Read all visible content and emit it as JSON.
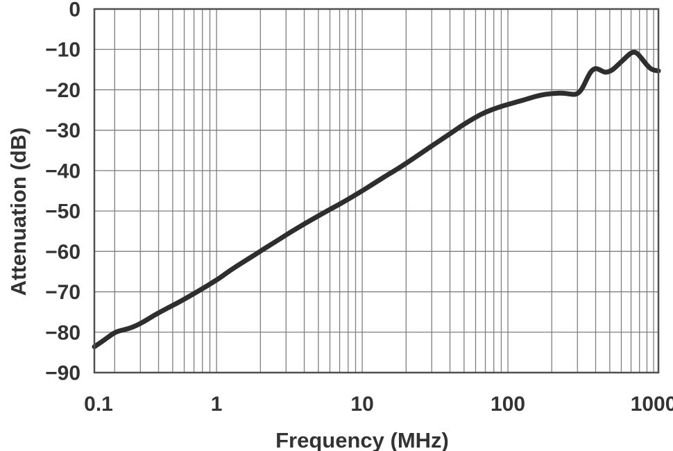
{
  "figure": {
    "xlabel": "Frequency (MHz)",
    "ylabel": "Attenuation (dB)"
  },
  "chart_data": {
    "type": "line",
    "title": "",
    "xlabel": "Frequency (MHz)",
    "ylabel": "Attenuation (dB)",
    "x_scale": "log",
    "x_unit": "MHz",
    "y_unit": "dB",
    "x_range": [
      0.145,
      1079
    ],
    "y_range": [
      -90,
      0
    ],
    "x_tick_labels": [
      "0.1",
      "1",
      "10",
      "100",
      "1000"
    ],
    "x_tick_values": [
      0.1,
      1,
      10,
      100,
      1000
    ],
    "y_tick_labels": [
      "0",
      "−10",
      "−20",
      "−30",
      "−40",
      "−50",
      "−60",
      "−70",
      "−80",
      "−90"
    ],
    "y_tick_values": [
      0,
      -10,
      -20,
      -30,
      -40,
      -50,
      -60,
      -70,
      -80,
      -90
    ],
    "grid": {
      "show": true,
      "minor_log_x": true,
      "major_every_db": 10
    },
    "legend": "none",
    "colors": {
      "curve": "#2e2e2e",
      "text": "#333333",
      "grid": "#7e7e7e",
      "border": "#4f4f4f",
      "background": "#ffffff"
    },
    "series": [
      {
        "name": "attenuation",
        "points_f_mhz_db": [
          [
            0.145,
            -83.6
          ],
          [
            0.155,
            -82.9
          ],
          [
            0.17,
            -81.9
          ],
          [
            0.19,
            -80.6
          ],
          [
            0.205,
            -79.9
          ],
          [
            0.225,
            -79.5
          ],
          [
            0.25,
            -79.1
          ],
          [
            0.28,
            -78.4
          ],
          [
            0.32,
            -77.3
          ],
          [
            0.37,
            -75.9
          ],
          [
            0.42,
            -74.8
          ],
          [
            0.48,
            -73.7
          ],
          [
            0.55,
            -72.6
          ],
          [
            0.63,
            -71.4
          ],
          [
            0.72,
            -70.2
          ],
          [
            0.82,
            -69.0
          ],
          [
            0.92,
            -67.9
          ],
          [
            1.05,
            -66.6
          ],
          [
            1.25,
            -64.6
          ],
          [
            1.5,
            -62.8
          ],
          [
            1.8,
            -61.0
          ],
          [
            2.2,
            -59.0
          ],
          [
            2.7,
            -57.0
          ],
          [
            3.3,
            -55.0
          ],
          [
            4,
            -53.2
          ],
          [
            5,
            -51.2
          ],
          [
            6,
            -49.6
          ],
          [
            7,
            -48.3
          ],
          [
            8,
            -47.1
          ],
          [
            9,
            -46.0
          ],
          [
            10,
            -45.0
          ],
          [
            12,
            -43.2
          ],
          [
            15,
            -41.0
          ],
          [
            18,
            -39.3
          ],
          [
            22,
            -37.2
          ],
          [
            27,
            -35.0
          ],
          [
            33,
            -32.9
          ],
          [
            40,
            -30.9
          ],
          [
            48,
            -28.9
          ],
          [
            58,
            -27.1
          ],
          [
            70,
            -25.5
          ],
          [
            85,
            -24.4
          ],
          [
            100,
            -23.6
          ],
          [
            115,
            -23.0
          ],
          [
            135,
            -22.3
          ],
          [
            155,
            -21.6
          ],
          [
            180,
            -21.1
          ],
          [
            205,
            -20.9
          ],
          [
            235,
            -20.8
          ],
          [
            262,
            -21.0
          ],
          [
            285,
            -21.2
          ],
          [
            302,
            -20.9
          ],
          [
            318,
            -20.1
          ],
          [
            332,
            -18.9
          ],
          [
            350,
            -17.1
          ],
          [
            370,
            -15.5
          ],
          [
            390,
            -14.8
          ],
          [
            405,
            -14.7
          ],
          [
            425,
            -15.0
          ],
          [
            450,
            -15.5
          ],
          [
            475,
            -15.7
          ],
          [
            510,
            -15.3
          ],
          [
            545,
            -14.5
          ],
          [
            590,
            -13.3
          ],
          [
            640,
            -12.1
          ],
          [
            690,
            -11.0
          ],
          [
            730,
            -10.6
          ],
          [
            770,
            -10.9
          ],
          [
            815,
            -11.9
          ],
          [
            865,
            -13.1
          ],
          [
            915,
            -14.2
          ],
          [
            965,
            -14.9
          ],
          [
            1020,
            -15.2
          ],
          [
            1079,
            -15.3
          ]
        ]
      }
    ]
  }
}
